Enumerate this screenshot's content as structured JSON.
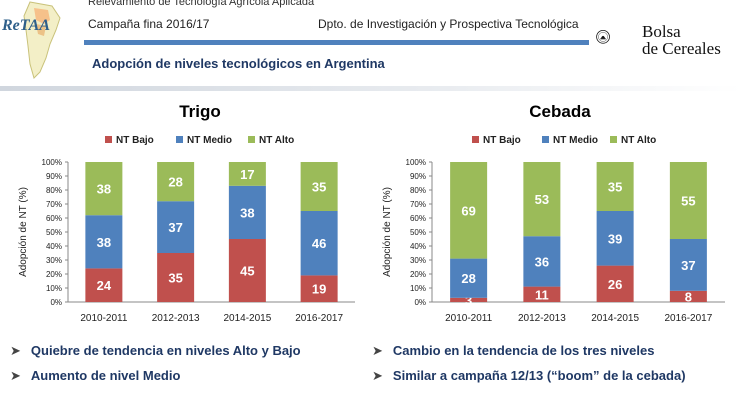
{
  "header": {
    "project": "Relevamiento de Tecnología Agrícola Aplicada",
    "campaign": "Campaña fina 2016/17",
    "department": "Dpto. de Investigación y Prospectiva Tecnológica",
    "subtitle": "Adopción de niveles tecnológicos en Argentina",
    "logo_left": "ReTAA",
    "logo_right_line1": "Bolsa",
    "logo_right_line2": "de Cereales"
  },
  "colors": {
    "nt_bajo": "#c0504d",
    "nt_medio": "#4f81bd",
    "nt_alto": "#9bbb59",
    "accent": "#4f81bd"
  },
  "chart_data": [
    {
      "type": "bar",
      "stacked": true,
      "title": "Trigo",
      "ylabel": "Adopción de NT (%)",
      "ylim": [
        0,
        100
      ],
      "yticks": [
        "0%",
        "10%",
        "20%",
        "30%",
        "40%",
        "50%",
        "60%",
        "70%",
        "80%",
        "90%",
        "100%"
      ],
      "legend_position": "top",
      "categories": [
        "2010-2011",
        "2012-2013",
        "2014-2015",
        "2016-2017"
      ],
      "series": [
        {
          "name": "NT Bajo",
          "color": "#c0504d",
          "values": [
            24,
            35,
            45,
            19
          ]
        },
        {
          "name": "NT Medio",
          "color": "#4f81bd",
          "values": [
            38,
            37,
            38,
            46
          ]
        },
        {
          "name": "NT Alto",
          "color": "#9bbb59",
          "values": [
            38,
            28,
            17,
            35
          ]
        }
      ]
    },
    {
      "type": "bar",
      "stacked": true,
      "title": "Cebada",
      "ylabel": "Adopción de NT (%)",
      "ylim": [
        0,
        100
      ],
      "yticks": [
        "0%",
        "10%",
        "20%",
        "30%",
        "40%",
        "50%",
        "60%",
        "70%",
        "80%",
        "90%",
        "100%"
      ],
      "legend_position": "top",
      "categories": [
        "2010-2011",
        "2012-2013",
        "2014-2015",
        "2016-2017"
      ],
      "series": [
        {
          "name": "NT Bajo",
          "color": "#c0504d",
          "values": [
            3,
            11,
            26,
            8
          ]
        },
        {
          "name": "NT Medio",
          "color": "#4f81bd",
          "values": [
            28,
            36,
            39,
            37
          ]
        },
        {
          "name": "NT Alto",
          "color": "#9bbb59",
          "values": [
            69,
            53,
            35,
            55
          ]
        }
      ]
    }
  ],
  "bullets": {
    "trigo": [
      "Quiebre de tendencia en niveles Alto y Bajo",
      "Aumento de nivel Medio"
    ],
    "cebada": [
      "Cambio en la tendencia de los tres niveles",
      "Similar a campaña 12/13 (“boom” de la cebada)"
    ]
  }
}
